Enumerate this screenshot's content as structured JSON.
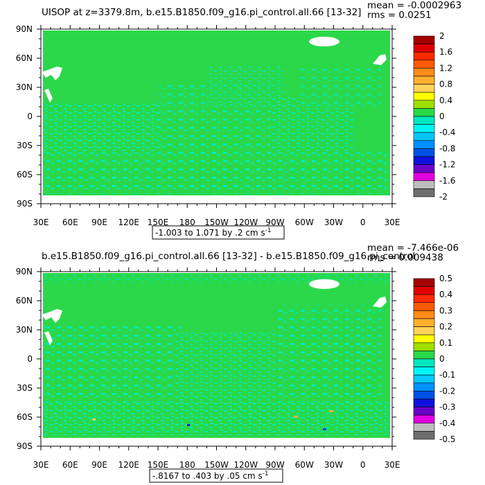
{
  "chart_data": [
    {
      "type": "heatmap",
      "title": "UISOP at z=3379.8m, b.e15.B1850.f09_g16.pi_control.all.66 [13-32]",
      "stat_mean": "mean = -0.0002963",
      "stat_rms": "rms = 0.0251",
      "range_label": "-1.003 to 1.071 by .2 cm s",
      "range_unit_exp": "-1",
      "x_ticks": [
        "30E",
        "60E",
        "90E",
        "120E",
        "150E",
        "180",
        "150W",
        "120W",
        "90W",
        "60W",
        "30W",
        "0",
        "30E"
      ],
      "y_ticks": [
        "90N",
        "60N",
        "30N",
        "0",
        "30S",
        "60S",
        "90S"
      ],
      "colorbar": {
        "labels": [
          "2",
          "1.6",
          "1.2",
          "0.8",
          "0.4",
          "0",
          "-0.4",
          "-0.8",
          "-1.2",
          "-1.6",
          "-2"
        ],
        "colors": [
          "#a50000",
          "#e00000",
          "#ff2a00",
          "#ff5a00",
          "#ff8c1a",
          "#ffb030",
          "#ffd25a",
          "#ffff00",
          "#9fe000",
          "#2bd84a",
          "#00e8c0",
          "#00f4f4",
          "#00c8ff",
          "#0090ff",
          "#0050e6",
          "#1010dd",
          "#6a00c8",
          "#e000e0",
          "#bdbdbd",
          "#6e6e6e"
        ]
      }
    },
    {
      "type": "heatmap",
      "title": "b.e15.B1850.f09_g16.pi_control.all.66 [13-32] - b.e15.B1850.f09_g16.pi_control",
      "stat_mean": "mean = -7.466e-06",
      "stat_rms": "rms = 0.009438",
      "range_label": "-.8167 to .403 by .05 cm s",
      "range_unit_exp": "-1",
      "x_ticks": [
        "30E",
        "60E",
        "90E",
        "120E",
        "150E",
        "180",
        "150W",
        "120W",
        "90W",
        "60W",
        "30W",
        "0",
        "30E"
      ],
      "y_ticks": [
        "90N",
        "60N",
        "30N",
        "0",
        "30S",
        "60S",
        "90S"
      ],
      "colorbar": {
        "labels": [
          "0.5",
          "0.4",
          "0.3",
          "0.2",
          "0.1",
          "0",
          "-0.1",
          "-0.2",
          "-0.3",
          "-0.4",
          "-0.5"
        ],
        "colors": [
          "#a50000",
          "#e00000",
          "#ff2a00",
          "#ff5a00",
          "#ff8c1a",
          "#ffb030",
          "#ffd25a",
          "#ffff00",
          "#9fe000",
          "#2bd84a",
          "#00e8c0",
          "#00f4f4",
          "#00c8ff",
          "#0090ff",
          "#0050e6",
          "#1010dd",
          "#6a00c8",
          "#e000e0",
          "#bdbdbd",
          "#6e6e6e"
        ]
      }
    }
  ]
}
